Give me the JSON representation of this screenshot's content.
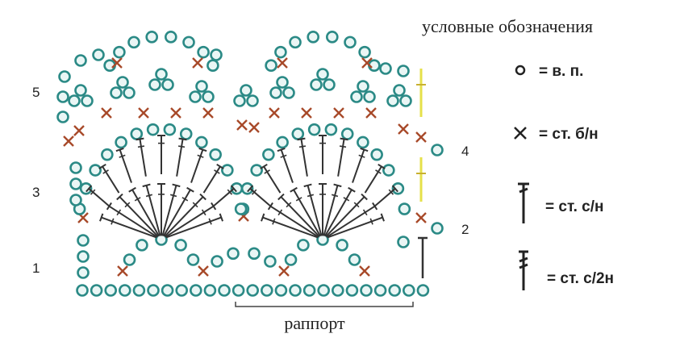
{
  "legend": {
    "title": "условные обозначения",
    "items": [
      "= в. п.",
      "= ст. б/н",
      "= ст. с/н",
      "= ст. с/2н"
    ]
  },
  "rows": [
    "1",
    "2",
    "3",
    "4",
    "5"
  ],
  "repeat": "раппорт"
}
